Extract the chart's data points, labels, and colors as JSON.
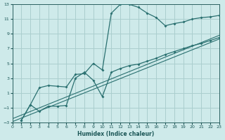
{
  "xlabel": "Humidex (Indice chaleur)",
  "bg_color": "#ceeaea",
  "grid_color": "#aacece",
  "line_color": "#2a7070",
  "xlim": [
    0,
    23
  ],
  "ylim": [
    -3,
    13
  ],
  "xticks": [
    0,
    1,
    2,
    3,
    4,
    5,
    6,
    7,
    8,
    9,
    10,
    11,
    12,
    13,
    14,
    15,
    16,
    17,
    18,
    19,
    20,
    21,
    22,
    23
  ],
  "yticks": [
    -3,
    -1,
    1,
    3,
    5,
    7,
    9,
    11,
    13
  ],
  "curve1_x": [
    1,
    2,
    3,
    4,
    5,
    6,
    7,
    8,
    9,
    10,
    11,
    12,
    13,
    14,
    15,
    16,
    17,
    18,
    19,
    20,
    21,
    22,
    23
  ],
  "curve1_y": [
    -2.7,
    -0.6,
    1.7,
    2.0,
    1.9,
    1.8,
    3.5,
    3.6,
    5.0,
    4.1,
    11.8,
    13.0,
    13.0,
    12.6,
    11.8,
    11.2,
    10.1,
    10.4,
    10.6,
    11.0,
    11.2,
    11.3,
    11.5
  ],
  "curve2_x": [
    1,
    2,
    3,
    4,
    5,
    6,
    7,
    8,
    9,
    10,
    11,
    12,
    13,
    14,
    15,
    16,
    17,
    18,
    19,
    20,
    21,
    22,
    23
  ],
  "curve2_y": [
    -2.7,
    -0.6,
    -1.5,
    -0.8,
    -0.8,
    -0.7,
    3.0,
    3.8,
    2.7,
    0.5,
    3.8,
    4.3,
    4.7,
    4.9,
    5.3,
    5.7,
    6.2,
    6.6,
    7.0,
    7.4,
    7.7,
    8.1,
    8.5
  ],
  "line1_x": [
    0,
    23
  ],
  "line1_y": [
    -2.5,
    8.8
  ],
  "line2_x": [
    0,
    23
  ],
  "line2_y": [
    -2.9,
    8.3
  ]
}
